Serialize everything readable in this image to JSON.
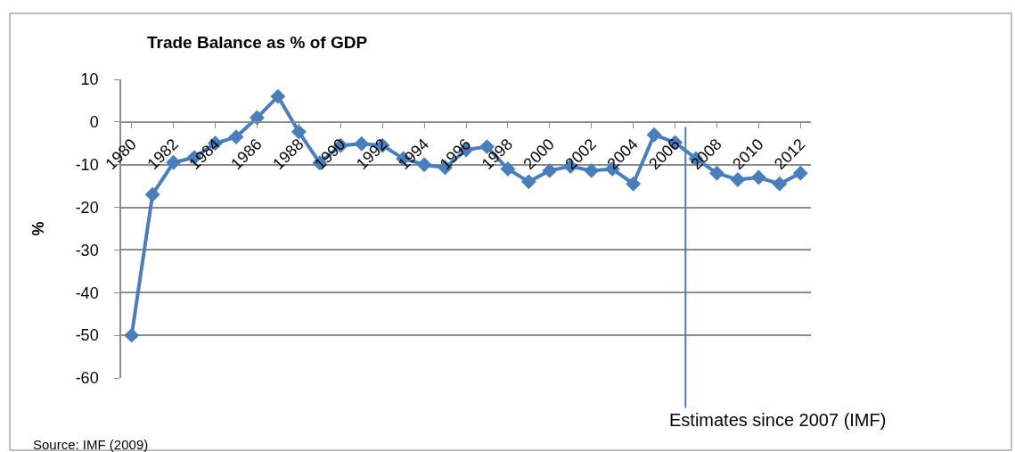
{
  "chart_data": {
    "type": "line",
    "title": "Trade Balance as % of GDP",
    "ylabel": "%",
    "x": [
      1980,
      1981,
      1982,
      1983,
      1984,
      1985,
      1986,
      1987,
      1988,
      1989,
      1990,
      1991,
      1992,
      1993,
      1994,
      1995,
      1996,
      1997,
      1998,
      1999,
      2000,
      2001,
      2002,
      2003,
      2004,
      2005,
      2006,
      2007,
      2008,
      2009,
      2010,
      2011,
      2012
    ],
    "series": [
      {
        "color": "#4a7ebb",
        "values": [
          -50,
          -17,
          -9.5,
          -8.3,
          -5,
          -3.5,
          1,
          6,
          -2.3,
          -9.6,
          -5.5,
          -5.1,
          -5.5,
          -8.6,
          -10,
          -10.7,
          -6.5,
          -5.8,
          -11,
          -14,
          -11.4,
          -10.4,
          -11.4,
          -11,
          -14.5,
          -3,
          -4.8,
          -8.6,
          -12,
          -13.5,
          -13,
          -14.5,
          -12
        ]
      }
    ],
    "xlim": [
      1979.5,
      2012.5
    ],
    "xticks": [
      1980,
      1982,
      1984,
      1986,
      1988,
      1990,
      1992,
      1994,
      1996,
      1998,
      2000,
      2002,
      2004,
      2006,
      2008,
      2010,
      2012
    ],
    "ylim": [
      -60,
      10
    ],
    "yticks": [
      -60,
      -50,
      -40,
      -30,
      -20,
      -10,
      0,
      10
    ],
    "grid": "y",
    "marker": "diamond",
    "line_style": "solid",
    "ref_lines": [
      {
        "axis": "x",
        "value": 2006.5,
        "label": "Estimates since 2007 (IMF)",
        "color": "#4a7ebb"
      }
    ],
    "annotations": [
      "Source: IMF (2009)"
    ]
  }
}
